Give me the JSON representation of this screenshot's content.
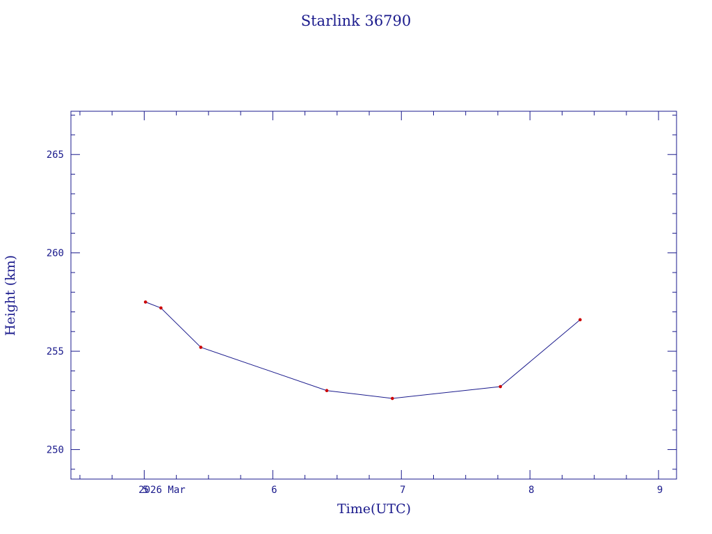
{
  "colors": {
    "axis": "#1a1a8c",
    "line": "#1a1a8c",
    "marker": "#cc0000",
    "background": "#ffffff"
  },
  "chart_data": {
    "type": "line",
    "title": "Starlink 36790",
    "xlabel": "Time(UTC)",
    "ylabel": "Height (km)",
    "date_label": "2026 Mar",
    "xlim": [
      4.43,
      9.14
    ],
    "ylim": [
      248.5,
      267.2
    ],
    "x_ticks": [
      5,
      6,
      7,
      8,
      9
    ],
    "x_tick_labels": [
      "5",
      "6",
      "7",
      "8",
      "9"
    ],
    "y_ticks": [
      250,
      255,
      260,
      265
    ],
    "y_tick_labels": [
      "250",
      "255",
      "260",
      "265"
    ],
    "grid": false,
    "series": [
      {
        "x": [
          5.01,
          5.13,
          5.44,
          6.42,
          6.93,
          7.77,
          8.39
        ],
        "y": [
          257.5,
          257.2,
          255.2,
          253.0,
          252.6,
          253.2,
          256.6
        ]
      }
    ]
  }
}
